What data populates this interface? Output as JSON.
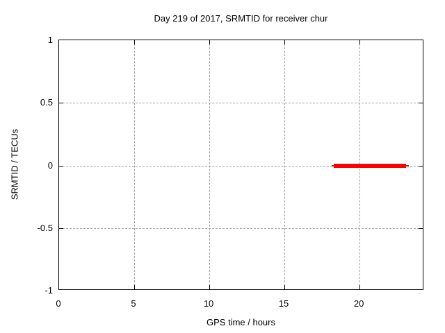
{
  "chart_data": {
    "type": "line",
    "title": "Day 219 of 2017, SRMTID for receiver chur",
    "xlabel": "GPS time / hours",
    "ylabel": "SRMTID / TECUs",
    "xlim": [
      0,
      24.3
    ],
    "ylim": [
      -1,
      1
    ],
    "x_ticks": [
      {
        "value": 0,
        "label": "0"
      },
      {
        "value": 5,
        "label": "5"
      },
      {
        "value": 10,
        "label": "10"
      },
      {
        "value": 15,
        "label": "15"
      },
      {
        "value": 20,
        "label": "20"
      }
    ],
    "y_ticks": [
      {
        "value": 1,
        "label": "1"
      },
      {
        "value": 0.5,
        "label": "0.5"
      },
      {
        "value": 0,
        "label": "0"
      },
      {
        "value": -0.5,
        "label": "-0.5"
      },
      {
        "value": -1,
        "label": "-1"
      }
    ],
    "grid": {
      "x_values": [
        5,
        10,
        15,
        20
      ],
      "y_values": [
        0.5,
        0,
        -0.5
      ],
      "color": "#9e9e9e",
      "style": "dashed"
    },
    "axes": {
      "border_color": "#000000",
      "tick_color": "#000000"
    },
    "legend": "none",
    "series": [
      {
        "name": "SRMTID",
        "color": "#ff0000",
        "y": 0,
        "x_start": 18.15,
        "x_end": 23.3,
        "core_x_start": 18.3,
        "core_x_end": 23.1
      }
    ]
  }
}
